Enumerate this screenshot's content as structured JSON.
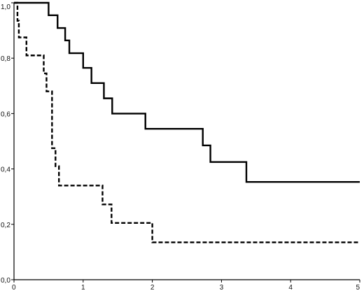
{
  "chart_data": {
    "type": "line",
    "title": "",
    "xlabel": "",
    "ylabel": "",
    "xlim": [
      0,
      5
    ],
    "ylim": [
      0,
      1
    ],
    "grid": false,
    "x_ticks": [
      "0",
      "1",
      "2",
      "3",
      "4",
      "5"
    ],
    "y_ticks": [
      "0,0",
      "0,2",
      "0,4",
      "0,6",
      "0,8",
      "1,0"
    ],
    "series": [
      {
        "style": "solid",
        "color": "#000000",
        "points": [
          [
            0,
            1.0
          ],
          [
            0.5,
            1.0
          ],
          [
            0.5,
            0.955
          ],
          [
            0.63,
            0.955
          ],
          [
            0.63,
            0.909
          ],
          [
            0.74,
            0.909
          ],
          [
            0.74,
            0.864
          ],
          [
            0.8,
            0.864
          ],
          [
            0.8,
            0.818
          ],
          [
            1.0,
            0.818
          ],
          [
            1.0,
            0.765
          ],
          [
            1.12,
            0.765
          ],
          [
            1.12,
            0.71
          ],
          [
            1.3,
            0.71
          ],
          [
            1.3,
            0.655
          ],
          [
            1.42,
            0.655
          ],
          [
            1.42,
            0.6
          ],
          [
            1.9,
            0.6
          ],
          [
            1.9,
            0.545
          ],
          [
            2.73,
            0.545
          ],
          [
            2.73,
            0.485
          ],
          [
            2.84,
            0.485
          ],
          [
            2.84,
            0.425
          ],
          [
            3.36,
            0.425
          ],
          [
            3.36,
            0.353
          ],
          [
            5.0,
            0.353
          ]
        ]
      },
      {
        "style": "dashed",
        "color": "#000000",
        "points": [
          [
            0,
            1.0
          ],
          [
            0.05,
            1.0
          ],
          [
            0.05,
            0.935
          ],
          [
            0.07,
            0.935
          ],
          [
            0.07,
            0.875
          ],
          [
            0.18,
            0.875
          ],
          [
            0.18,
            0.81
          ],
          [
            0.43,
            0.81
          ],
          [
            0.43,
            0.745
          ],
          [
            0.47,
            0.745
          ],
          [
            0.47,
            0.68
          ],
          [
            0.55,
            0.68
          ],
          [
            0.55,
            0.475
          ],
          [
            0.6,
            0.475
          ],
          [
            0.6,
            0.41
          ],
          [
            0.65,
            0.41
          ],
          [
            0.65,
            0.34
          ],
          [
            1.28,
            0.34
          ],
          [
            1.28,
            0.272
          ],
          [
            1.41,
            0.272
          ],
          [
            1.41,
            0.205
          ],
          [
            2.0,
            0.205
          ],
          [
            2.0,
            0.135
          ],
          [
            5.0,
            0.135
          ]
        ]
      }
    ]
  }
}
